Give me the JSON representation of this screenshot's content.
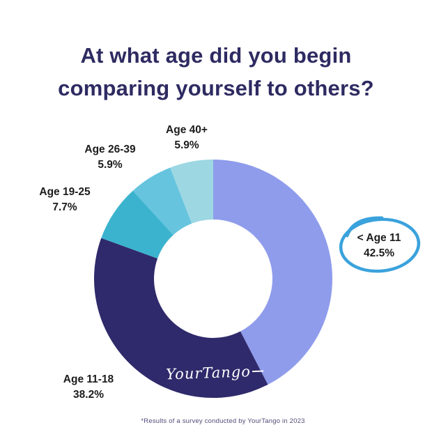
{
  "page": {
    "title_line1": "At what age did you begin",
    "title_line2": "comparing yourself to others?",
    "title_color": "#2e2b62",
    "footnote": "*Results of a survey conducted by YourTango in 2023",
    "logo_text": "YourTango",
    "background_color": "#ffffff"
  },
  "chart_data": {
    "type": "pie",
    "subtype": "donut",
    "title": "At what age did you begin comparing yourself to others?",
    "start_angle_deg": -90,
    "direction": "clockwise",
    "legend_position": "labels-around-chart",
    "categories": [
      "< Age 11",
      "Age 11-18",
      "Age 19-25",
      "Age 26-39",
      "Age 40+"
    ],
    "values": [
      42.5,
      38.2,
      7.7,
      5.9,
      5.9
    ],
    "segments": [
      {
        "id": "under-11",
        "label": "< Age 11",
        "value": 42.5,
        "pct": "42.5%",
        "color": "#8f9ceb",
        "annotated": true
      },
      {
        "id": "11-18",
        "label": "Age 11-18",
        "value": 38.2,
        "pct": "38.2%",
        "color": "#2f2a6b",
        "annotated": false
      },
      {
        "id": "19-25",
        "label": "Age 19-25",
        "value": 7.7,
        "pct": "7.7%",
        "color": "#3bb3ce",
        "annotated": false
      },
      {
        "id": "26-39",
        "label": "Age 26-39",
        "value": 5.9,
        "pct": "5.9%",
        "color": "#66c4de",
        "annotated": false
      },
      {
        "id": "40-plus",
        "label": "Age 40+",
        "value": 5.9,
        "pct": "5.9%",
        "color": "#9cd7e2",
        "annotated": false
      }
    ],
    "annotation": {
      "target": "< Age 11",
      "style": "hand-drawn-circle",
      "color": "#3aa2dc"
    }
  }
}
